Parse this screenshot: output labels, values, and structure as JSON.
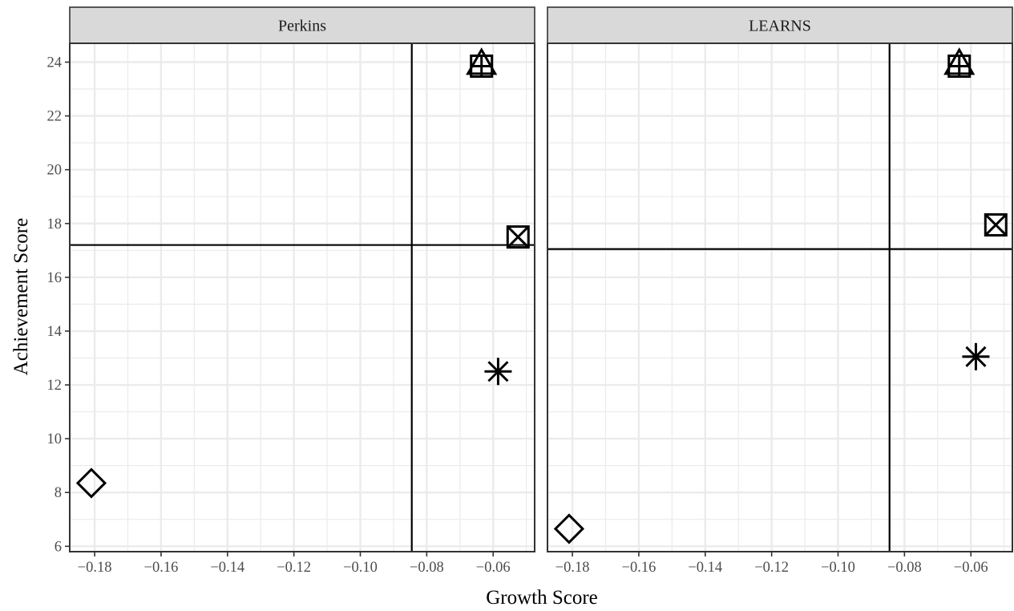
{
  "chart_data": {
    "type": "scatter",
    "xlabel": "Growth Score",
    "ylabel": "Achievement Score",
    "xlim": [
      -0.1875,
      -0.0475
    ],
    "ylim": [
      5.8,
      24.7
    ],
    "x_ticks": [
      -0.18,
      -0.16,
      -0.14,
      -0.12,
      -0.1,
      -0.08,
      -0.06
    ],
    "x_tick_labels": [
      "−0.18",
      "−0.16",
      "−0.14",
      "−0.12",
      "−0.10",
      "−0.08",
      "−0.06"
    ],
    "y_ticks": [
      6,
      8,
      10,
      12,
      14,
      16,
      18,
      20,
      22,
      24
    ],
    "y_tick_labels": [
      "6",
      "8",
      "10",
      "12",
      "14",
      "16",
      "18",
      "20",
      "22",
      "24"
    ],
    "grid": true,
    "legend": "none",
    "panels": [
      {
        "title": "Perkins",
        "vline": -0.0845,
        "hline": 17.2,
        "points": [
          {
            "x": -0.181,
            "y": 8.35,
            "shape": "diamond"
          },
          {
            "x": -0.0585,
            "y": 12.5,
            "shape": "asterisk"
          },
          {
            "x": -0.0525,
            "y": 17.5,
            "shape": "square-x"
          },
          {
            "x": -0.0635,
            "y": 23.95,
            "shape": "triangle"
          },
          {
            "x": -0.0635,
            "y": 23.85,
            "shape": "square-plus"
          }
        ]
      },
      {
        "title": "LEARNS",
        "vline": -0.0845,
        "hline": 17.05,
        "points": [
          {
            "x": -0.181,
            "y": 6.65,
            "shape": "diamond"
          },
          {
            "x": -0.0585,
            "y": 13.05,
            "shape": "asterisk"
          },
          {
            "x": -0.0525,
            "y": 17.95,
            "shape": "square-x"
          },
          {
            "x": -0.0635,
            "y": 23.95,
            "shape": "triangle"
          },
          {
            "x": -0.0635,
            "y": 23.85,
            "shape": "square-plus"
          }
        ]
      }
    ]
  }
}
